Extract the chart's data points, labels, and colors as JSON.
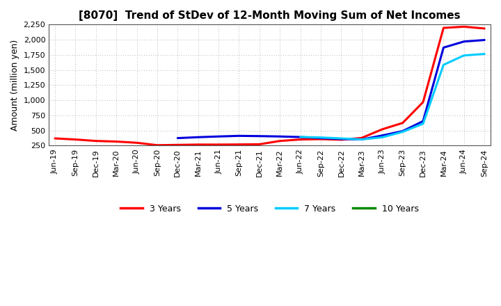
{
  "title": "[8070]  Trend of StDev of 12-Month Moving Sum of Net Incomes",
  "ylabel": "Amount (million yen)",
  "background_color": "#ffffff",
  "plot_bg_color": "#ffffff",
  "grid_color": "#999999",
  "ylim": [
    250,
    2250
  ],
  "yticks": [
    250,
    500,
    750,
    1000,
    1250,
    1500,
    1750,
    2000,
    2250
  ],
  "ytick_labels": [
    "250",
    "500",
    "750",
    "1,000",
    "1,250",
    "1,500",
    "1,750",
    "2,000",
    "2,250"
  ],
  "x_labels": [
    "Jun-19",
    "Sep-19",
    "Dec-19",
    "Mar-20",
    "Jun-20",
    "Sep-20",
    "Dec-20",
    "Mar-21",
    "Jun-21",
    "Sep-21",
    "Dec-21",
    "Mar-22",
    "Jun-22",
    "Sep-22",
    "Dec-22",
    "Mar-23",
    "Jun-23",
    "Sep-23",
    "Dec-23",
    "Mar-24",
    "Jun-24",
    "Sep-24"
  ],
  "series": {
    "3 Years": {
      "color": "#ff0000",
      "values": [
        370,
        352,
        328,
        318,
        298,
        258,
        263,
        268,
        268,
        270,
        273,
        328,
        352,
        358,
        348,
        378,
        520,
        625,
        970,
        2195,
        2215,
        2185
      ]
    },
    "5 Years": {
      "color": "#0000dd",
      "values": [
        null,
        null,
        null,
        null,
        null,
        null,
        375,
        390,
        402,
        412,
        408,
        402,
        392,
        375,
        360,
        353,
        418,
        490,
        655,
        1870,
        1970,
        1995
      ]
    },
    "7 Years": {
      "color": "#00ccff",
      "values": [
        null,
        null,
        null,
        null,
        null,
        null,
        null,
        null,
        null,
        null,
        null,
        null,
        395,
        385,
        370,
        353,
        388,
        478,
        612,
        1585,
        1740,
        1765
      ]
    },
    "10 Years": {
      "color": "#008800",
      "values": [
        null,
        null,
        null,
        null,
        null,
        null,
        null,
        null,
        null,
        null,
        null,
        null,
        null,
        null,
        null,
        null,
        null,
        null,
        null,
        null,
        null,
        null
      ]
    }
  },
  "legend_order": [
    "3 Years",
    "5 Years",
    "7 Years",
    "10 Years"
  ],
  "title_fontsize": 11,
  "ylabel_fontsize": 9,
  "tick_fontsize": 8,
  "legend_fontsize": 9,
  "linewidth": 2.2
}
